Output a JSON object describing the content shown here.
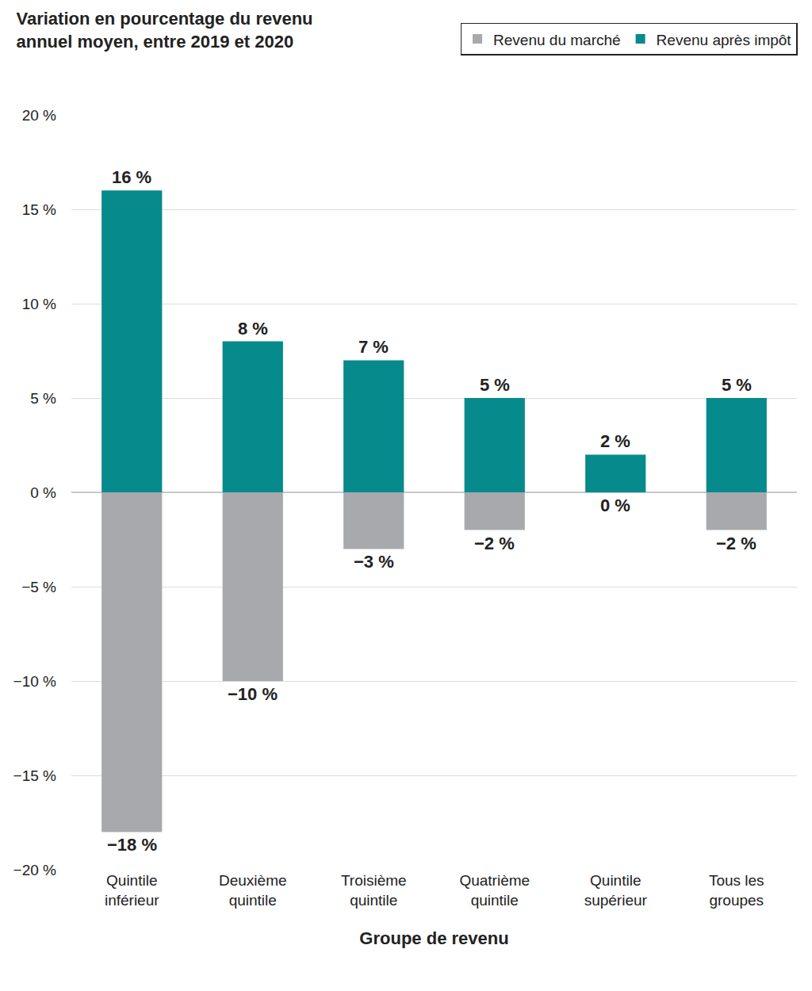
{
  "chart_data": {
    "type": "bar",
    "title": "Variation en pourcentage du revenu\nannuel moyen, entre 2019 et 2020",
    "x_label": "Groupe de revenu",
    "categories": [
      "Quintile\ninférieur",
      "Deuxième\nquintile",
      "Troisième\nquintile",
      "Quatrième\nquintile",
      "Quintile\nsupérieur",
      "Tous les\ngroupes"
    ],
    "series": [
      {
        "name": "Revenu du marché",
        "color": "#a7a9ac",
        "values": [
          -18,
          -10,
          -3,
          -2,
          0,
          -2
        ],
        "value_labels": [
          "−18 %",
          "−10 %",
          "−3 %",
          "−2 %",
          "0 %",
          "−2 %"
        ]
      },
      {
        "name": "Revenu après impôt",
        "color": "#068a8c",
        "values": [
          16,
          8,
          7,
          5,
          2,
          5
        ],
        "value_labels": [
          "16 %",
          "8 %",
          "7 %",
          "5 %",
          "2 %",
          "5 %"
        ]
      }
    ],
    "ylim": [
      -20,
      20
    ],
    "yticks": [
      {
        "value": -20,
        "label": "−20 %"
      },
      {
        "value": -15,
        "label": "−15 %"
      },
      {
        "value": -10,
        "label": "−10 %"
      },
      {
        "value": -5,
        "label": "−5 %"
      },
      {
        "value": 0,
        "label": "0 %"
      },
      {
        "value": 5,
        "label": "5 %"
      },
      {
        "value": 10,
        "label": "10 %"
      },
      {
        "value": 15,
        "label": "15 %"
      },
      {
        "value": 20,
        "label": "20 %"
      }
    ],
    "grid": true,
    "legend": "top right",
    "data_labels": true
  }
}
